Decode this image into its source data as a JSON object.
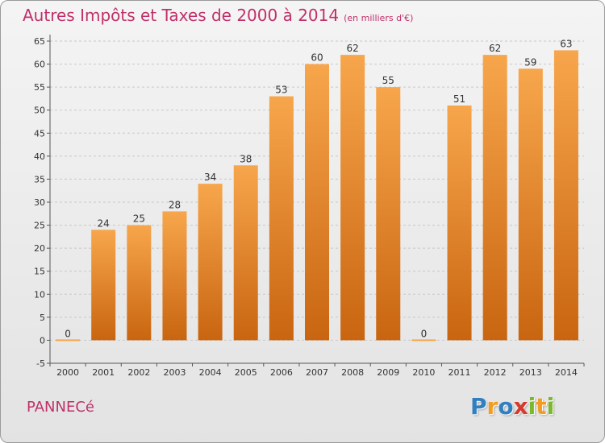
{
  "title": "Autres Impôts et Taxes de 2000 à 2014",
  "unit_note": "(en milliers d'€)",
  "commune": "PANNECé",
  "logo": {
    "letters": [
      "P",
      "r",
      "o",
      "x",
      "i",
      "t",
      "i"
    ],
    "colors": [
      "#2f7fc1",
      "#f39c1f",
      "#2f7fc1",
      "#d63a2a",
      "#7ab929",
      "#f39c1f",
      "#7ab929"
    ]
  },
  "colors": {
    "title": "#c0306a",
    "bar_light": "#f7a64c",
    "bar_dark": "#c96510",
    "grid": "#c8c8c8",
    "axis": "#555555"
  },
  "chart_data": {
    "type": "bar",
    "categories": [
      "2000",
      "2001",
      "2002",
      "2003",
      "2004",
      "2005",
      "2006",
      "2007",
      "2008",
      "2009",
      "2010",
      "2011",
      "2012",
      "2013",
      "2014"
    ],
    "values": [
      0,
      24,
      25,
      28,
      34,
      38,
      53,
      60,
      62,
      55,
      0,
      51,
      62,
      59,
      63
    ],
    "data_labels": [
      "0",
      "24",
      "25",
      "28",
      "34",
      "38",
      "53",
      "60",
      "62",
      "55",
      "0",
      "51",
      "62",
      "59",
      "63"
    ],
    "y_ticks": [
      "-5",
      "0",
      "5",
      "10",
      "15",
      "20",
      "25",
      "30",
      "35",
      "40",
      "45",
      "50",
      "55",
      "60",
      "65"
    ],
    "ylim": [
      -5,
      65
    ],
    "grid": "horizontal dashed"
  }
}
